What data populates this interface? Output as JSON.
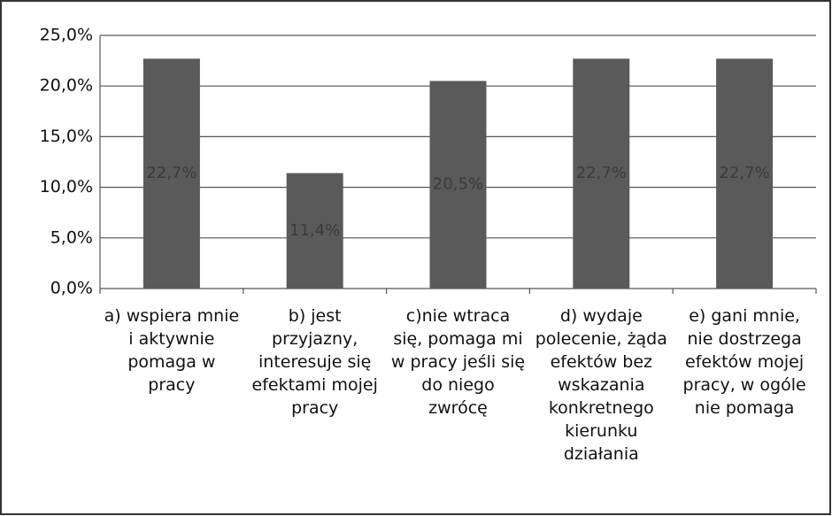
{
  "chart_data": {
    "type": "bar",
    "categories": [
      "a) wspiera mnie i aktywnie pomaga w pracy",
      "b) jest przyjazny, interesuje się efektami mojej pracy",
      "c)nie wtraca się, pomaga mi w pracy jeśli się do niego zwrócę",
      "d) wydaje polecenie, żąda efektów bez wskazania konkretnego kierunku działania",
      "e) gani mnie, nie dostrzega efektów mojej pracy, w ogóle nie pomaga"
    ],
    "values": [
      22.7,
      11.4,
      20.5,
      22.7,
      22.7
    ],
    "value_labels": [
      "22,7%",
      "11,4%",
      "20,5%",
      "22,7%",
      "22,7%"
    ],
    "color": "#5a5a5a",
    "ylim": [
      0,
      25
    ],
    "yticks": [
      {
        "value": 0,
        "label": "0,0%"
      },
      {
        "value": 5,
        "label": "5,0%"
      },
      {
        "value": 10,
        "label": "10,0%"
      },
      {
        "value": 15,
        "label": "15,0%"
      },
      {
        "value": 20,
        "label": "20,0%"
      },
      {
        "value": 25,
        "label": "25,0%"
      }
    ],
    "grid": true
  }
}
